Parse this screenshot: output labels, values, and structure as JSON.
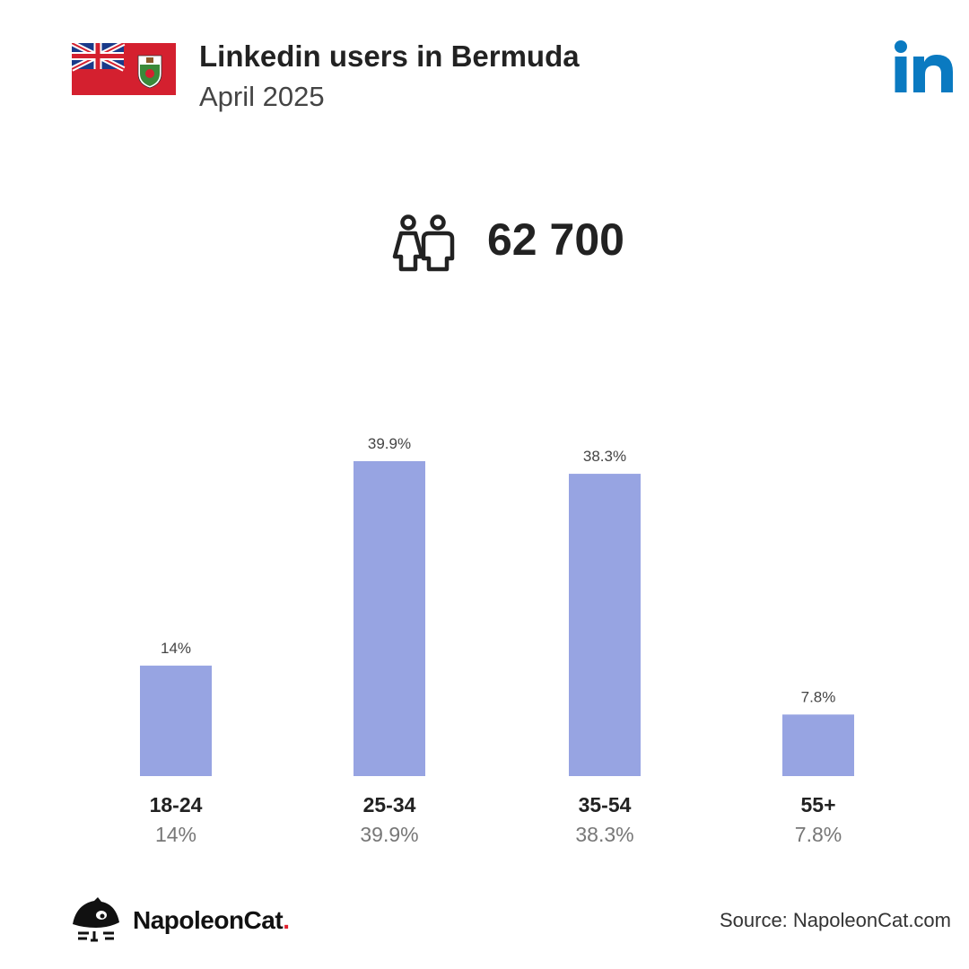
{
  "header": {
    "title": "Linkedin users in Bermuda",
    "subtitle": "April 2025"
  },
  "summary": {
    "total": "62 700"
  },
  "chart_data": {
    "type": "bar",
    "categories": [
      "18-24",
      "25-34",
      "35-54",
      "55+"
    ],
    "values": [
      14,
      39.9,
      38.3,
      7.8
    ],
    "value_labels": [
      "14%",
      "39.9%",
      "38.3%",
      "7.8%"
    ],
    "unit": "%",
    "title": "",
    "xlabel": "",
    "ylabel": "",
    "ylim": [
      0,
      39.9
    ],
    "grid": false,
    "legend": "none",
    "bar_color": "#97a4e2"
  },
  "footer": {
    "brand": "NapoleonCat",
    "brand_dot": ".",
    "source": "Source: NapoleonCat.com"
  },
  "colors": {
    "bar": "#97a4e2",
    "linkedin": "#0a7ac1",
    "flag_red": "#d4202f",
    "brand_dot": "#e0202e"
  },
  "icons": {
    "flag": "bermuda-flag-icon",
    "platform": "linkedin-logo-icon",
    "users": "users-icon",
    "brand": "napoleoncat-logo-icon"
  }
}
